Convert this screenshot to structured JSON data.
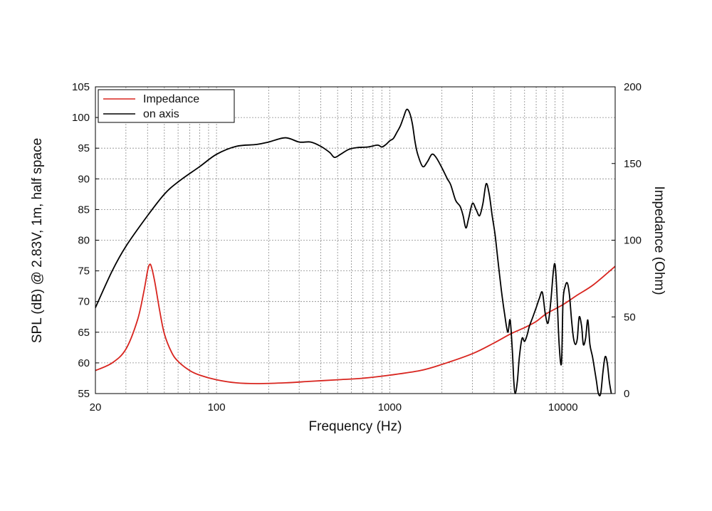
{
  "chart_data": {
    "type": "line",
    "xlabel": "Frequency (Hz)",
    "ylabel": "SPL (dB) @ 2.83V, 1m, half space",
    "y2label": "Impedance (Ohm)",
    "xscale": "log",
    "xlim": [
      20,
      20000
    ],
    "ylim": [
      55,
      105
    ],
    "y2lim": [
      0,
      200
    ],
    "x_tick_labels": [
      "20",
      "100",
      "1000",
      "10000"
    ],
    "x_tick_values": [
      20,
      100,
      1000,
      10000
    ],
    "y_tick_labels": [
      "55",
      "60",
      "65",
      "70",
      "75",
      "80",
      "85",
      "90",
      "95",
      "100",
      "105"
    ],
    "y_tick_values": [
      55,
      60,
      65,
      70,
      75,
      80,
      85,
      90,
      95,
      100,
      105
    ],
    "y2_tick_labels": [
      "0",
      "50",
      "100",
      "150",
      "200"
    ],
    "y2_tick_values": [
      0,
      50,
      100,
      150,
      200
    ],
    "grid": true,
    "legend_position": "top-left",
    "series": [
      {
        "name": "Impedance",
        "axis": "right",
        "color": "#d8251f",
        "points": [
          [
            20,
            15
          ],
          [
            25,
            20
          ],
          [
            30,
            29
          ],
          [
            35,
            48
          ],
          [
            38,
            66
          ],
          [
            40,
            80
          ],
          [
            41,
            84
          ],
          [
            42,
            83
          ],
          [
            44,
            73
          ],
          [
            47,
            54
          ],
          [
            50,
            39
          ],
          [
            55,
            27
          ],
          [
            60,
            21
          ],
          [
            70,
            15
          ],
          [
            80,
            12
          ],
          [
            100,
            9
          ],
          [
            130,
            7
          ],
          [
            170,
            6.5
          ],
          [
            250,
            7
          ],
          [
            350,
            8
          ],
          [
            500,
            9
          ],
          [
            700,
            10
          ],
          [
            1000,
            12
          ],
          [
            1500,
            15
          ],
          [
            2000,
            19
          ],
          [
            3000,
            26
          ],
          [
            4000,
            33
          ],
          [
            5000,
            39
          ],
          [
            6000,
            43
          ],
          [
            7000,
            47
          ],
          [
            8000,
            52
          ],
          [
            10000,
            58
          ],
          [
            12000,
            64
          ],
          [
            15000,
            71
          ],
          [
            20000,
            83
          ]
        ]
      },
      {
        "name": "on axis",
        "axis": "left",
        "color": "#000000",
        "points": [
          [
            20,
            69
          ],
          [
            25,
            75
          ],
          [
            30,
            79
          ],
          [
            40,
            84
          ],
          [
            50,
            87.5
          ],
          [
            60,
            89.5
          ],
          [
            80,
            92
          ],
          [
            100,
            94
          ],
          [
            130,
            95.3
          ],
          [
            170,
            95.6
          ],
          [
            200,
            96
          ],
          [
            250,
            96.7
          ],
          [
            300,
            96
          ],
          [
            350,
            96
          ],
          [
            400,
            95.3
          ],
          [
            450,
            94.3
          ],
          [
            480,
            93.5
          ],
          [
            520,
            94
          ],
          [
            580,
            94.8
          ],
          [
            650,
            95.1
          ],
          [
            750,
            95.2
          ],
          [
            850,
            95.5
          ],
          [
            900,
            95.2
          ],
          [
            950,
            95.6
          ],
          [
            1000,
            96.2
          ],
          [
            1050,
            96.6
          ],
          [
            1100,
            97.6
          ],
          [
            1150,
            98.6
          ],
          [
            1200,
            100
          ],
          [
            1250,
            101.3
          ],
          [
            1300,
            100.8
          ],
          [
            1350,
            99
          ],
          [
            1400,
            96
          ],
          [
            1450,
            94
          ],
          [
            1550,
            92
          ],
          [
            1650,
            92.8
          ],
          [
            1750,
            94
          ],
          [
            1850,
            93.5
          ],
          [
            2000,
            91.8
          ],
          [
            2150,
            90
          ],
          [
            2250,
            89
          ],
          [
            2400,
            86.5
          ],
          [
            2550,
            85.5
          ],
          [
            2650,
            84
          ],
          [
            2750,
            82
          ],
          [
            2850,
            83.5
          ],
          [
            3000,
            86
          ],
          [
            3150,
            85
          ],
          [
            3300,
            84
          ],
          [
            3450,
            86
          ],
          [
            3600,
            89.2
          ],
          [
            3750,
            87.5
          ],
          [
            3900,
            84
          ],
          [
            4050,
            81
          ],
          [
            4200,
            77
          ],
          [
            4400,
            72
          ],
          [
            4600,
            68
          ],
          [
            4800,
            65
          ],
          [
            4950,
            67
          ],
          [
            5100,
            62
          ],
          [
            5200,
            57
          ],
          [
            5300,
            55
          ],
          [
            5450,
            57
          ],
          [
            5600,
            61
          ],
          [
            5800,
            64
          ],
          [
            6000,
            63.5
          ],
          [
            6200,
            64.5
          ],
          [
            6400,
            66
          ],
          [
            6700,
            67.5
          ],
          [
            7000,
            69
          ],
          [
            7300,
            70.5
          ],
          [
            7600,
            71.5
          ],
          [
            7900,
            68
          ],
          [
            8200,
            66.5
          ],
          [
            8500,
            70
          ],
          [
            8800,
            75
          ],
          [
            9000,
            76
          ],
          [
            9200,
            72
          ],
          [
            9500,
            63
          ],
          [
            9800,
            60
          ],
          [
            10000,
            70
          ],
          [
            10300,
            72.5
          ],
          [
            10600,
            73
          ],
          [
            10900,
            71
          ],
          [
            11200,
            67
          ],
          [
            11500,
            64
          ],
          [
            11800,
            63
          ],
          [
            12100,
            64
          ],
          [
            12400,
            67.5
          ],
          [
            12800,
            66
          ],
          [
            13100,
            63
          ],
          [
            13500,
            64
          ],
          [
            13900,
            67
          ],
          [
            14300,
            63
          ],
          [
            14800,
            61
          ],
          [
            15200,
            59
          ],
          [
            15600,
            57
          ],
          [
            16000,
            55
          ],
          [
            16500,
            55
          ],
          [
            17000,
            58.5
          ],
          [
            17500,
            61
          ],
          [
            18000,
            60
          ],
          [
            18500,
            57
          ],
          [
            19000,
            55
          ]
        ]
      }
    ]
  }
}
